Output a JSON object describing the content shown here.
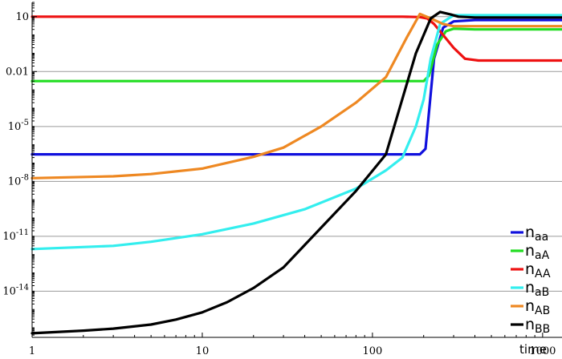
{
  "chart_data": {
    "type": "line",
    "xlabel": "time",
    "ylabel": "",
    "x_scale": "log",
    "y_scale": "log",
    "xlim": [
      1,
      1300
    ],
    "ylim": [
      3e-17,
      60
    ],
    "grid": "horizontal",
    "legend_position": "bottom-right",
    "x_ticks": [
      {
        "value": 1,
        "label": "1"
      },
      {
        "value": 10,
        "label": "10"
      },
      {
        "value": 100,
        "label": "100"
      },
      {
        "value": 1000,
        "label": "1000"
      }
    ],
    "y_ticks": [
      {
        "value": 10,
        "label": "10",
        "base": "10",
        "exp": ""
      },
      {
        "value": 0.01,
        "label": "0.01",
        "base": "0.01",
        "exp": ""
      },
      {
        "value": 1e-05,
        "label": "10^-5",
        "base": "10",
        "exp": "-5"
      },
      {
        "value": 1e-08,
        "label": "10^-8",
        "base": "10",
        "exp": "-8"
      },
      {
        "value": 1e-11,
        "label": "10^-11",
        "base": "10",
        "exp": "-11"
      },
      {
        "value": 1e-14,
        "label": "10^-14",
        "base": "10",
        "exp": "-14"
      }
    ],
    "series": [
      {
        "name": "n_aa",
        "main": "n",
        "sub": "aa",
        "color": "#1010dd",
        "x": [
          1,
          50,
          150,
          190,
          205,
          230,
          260,
          300,
          400,
          600,
          1300
        ],
        "y": [
          3e-07,
          3e-07,
          3e-07,
          3e-07,
          6e-07,
          0.05,
          2.5,
          5.5,
          6.5,
          6.5,
          6.5
        ]
      },
      {
        "name": "n_aA",
        "main": "n",
        "sub": "aA",
        "color": "#22dd22",
        "x": [
          1,
          50,
          150,
          200,
          215,
          240,
          270,
          300,
          400,
          600,
          1300
        ],
        "y": [
          0.003,
          0.003,
          0.003,
          0.003,
          0.006,
          0.3,
          1.6,
          2.2,
          2.0,
          2.0,
          2.0
        ]
      },
      {
        "name": "n_AA",
        "main": "n",
        "sub": "AA",
        "color": "#ee1111",
        "x": [
          1,
          50,
          150,
          190,
          210,
          230,
          260,
          300,
          350,
          420,
          1300
        ],
        "y": [
          10,
          10,
          10,
          9.5,
          8,
          4,
          1,
          0.2,
          0.05,
          0.04,
          0.04
        ]
      },
      {
        "name": "n_aB",
        "main": "n",
        "sub": "aB",
        "color": "#33eeee",
        "x": [
          1,
          3,
          5,
          10,
          20,
          40,
          80,
          120,
          150,
          180,
          200,
          220,
          250,
          300,
          1300
        ],
        "y": [
          2e-12,
          3e-12,
          5e-12,
          1.3e-11,
          5e-11,
          3e-10,
          4e-09,
          4e-08,
          2e-07,
          1e-05,
          0.0003,
          0.05,
          4,
          12,
          12
        ]
      },
      {
        "name": "n_AB",
        "main": "n",
        "sub": "AB",
        "color": "#ee8822",
        "x": [
          1,
          3,
          5,
          10,
          20,
          30,
          50,
          80,
          120,
          160,
          190,
          220,
          260,
          300,
          1300
        ],
        "y": [
          1.5e-08,
          1.9e-08,
          2.5e-08,
          5e-08,
          2.2e-07,
          7e-07,
          1e-05,
          0.0002,
          0.005,
          0.8,
          14,
          8,
          4,
          3,
          3
        ]
      },
      {
        "name": "n_BB",
        "main": "n",
        "sub": "BB",
        "color": "#000000",
        "x": [
          1,
          2,
          3,
          5,
          7,
          10,
          14,
          20,
          30,
          50,
          80,
          120,
          180,
          220,
          250,
          290,
          320,
          400,
          1300
        ],
        "y": [
          5e-17,
          7e-17,
          9e-17,
          1.5e-16,
          2.8e-16,
          7e-16,
          2.5e-15,
          1.5e-14,
          2e-13,
          3e-11,
          3e-09,
          3e-07,
          0.1,
          8,
          18,
          13,
          10,
          9,
          9
        ]
      }
    ]
  }
}
